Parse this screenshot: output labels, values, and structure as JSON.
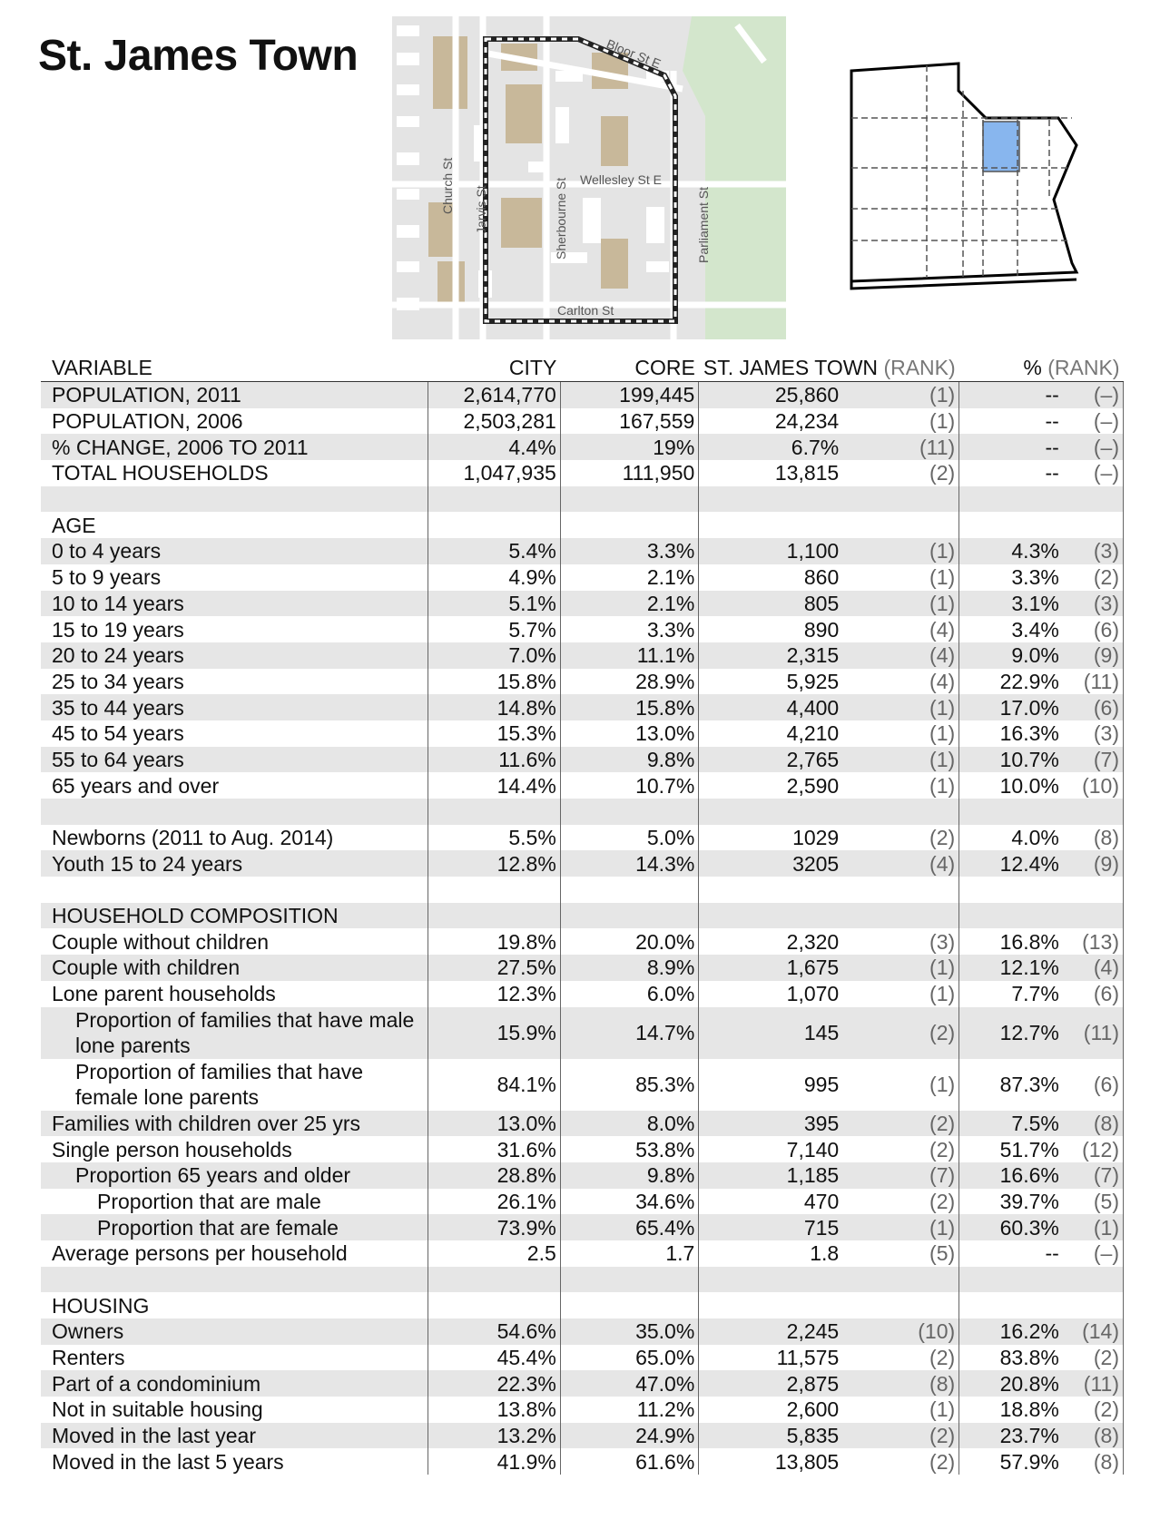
{
  "page_title": "St. James Town",
  "map": {
    "streets": {
      "bloor": "Bloor St E",
      "wellesley": "Wellesley St E",
      "carlton": "Carlton St",
      "church": "Church St",
      "jarvis": "Jarvis St",
      "sherbourne": "Sherbourne St",
      "parliament": "Parliament St"
    }
  },
  "table": {
    "headers": {
      "variable": "VARIABLE",
      "city": "CITY",
      "core": "CORE",
      "area": "ST. JAMES TOWN",
      "area_rank": "(RANK)",
      "pct": "%",
      "pct_rank": "(RANK)"
    },
    "rows": [
      {
        "label": "POPULATION, 2011",
        "city": "2,614,770",
        "core": "199,445",
        "value": "25,860",
        "rank": "(1)",
        "pct": "--",
        "pct_rank": "(–)",
        "indent": 0
      },
      {
        "label": "POPULATION, 2006",
        "city": "2,503,281",
        "core": "167,559",
        "value": "24,234",
        "rank": "(1)",
        "pct": "--",
        "pct_rank": "(–)",
        "indent": 0
      },
      {
        "label": "% CHANGE, 2006 TO 2011",
        "city": "4.4%",
        "core": "19%",
        "value": "6.7%",
        "rank": "(11)",
        "pct": "--",
        "pct_rank": "(–)",
        "indent": 0
      },
      {
        "label": "TOTAL HOUSEHOLDS",
        "city": "1,047,935",
        "core": "111,950",
        "value": "13,815",
        "rank": "(2)",
        "pct": "--",
        "pct_rank": "(–)",
        "indent": 0
      },
      {
        "label": "",
        "city": "",
        "core": "",
        "value": "",
        "rank": "",
        "pct": "",
        "pct_rank": "",
        "indent": 0
      },
      {
        "label": "AGE",
        "city": "",
        "core": "",
        "value": "",
        "rank": "",
        "pct": "",
        "pct_rank": "",
        "indent": 0
      },
      {
        "label": "0 to 4 years",
        "city": "5.4%",
        "core": "3.3%",
        "value": "1,100",
        "rank": "(1)",
        "pct": "4.3%",
        "pct_rank": "(3)",
        "indent": 0
      },
      {
        "label": "5 to 9 years",
        "city": "4.9%",
        "core": "2.1%",
        "value": "860",
        "rank": "(1)",
        "pct": "3.3%",
        "pct_rank": "(2)",
        "indent": 0
      },
      {
        "label": "10 to 14 years",
        "city": "5.1%",
        "core": "2.1%",
        "value": "805",
        "rank": "(1)",
        "pct": "3.1%",
        "pct_rank": "(3)",
        "indent": 0
      },
      {
        "label": "15 to 19 years",
        "city": "5.7%",
        "core": "3.3%",
        "value": "890",
        "rank": "(4)",
        "pct": "3.4%",
        "pct_rank": "(6)",
        "indent": 0
      },
      {
        "label": "20 to 24 years",
        "city": "7.0%",
        "core": "11.1%",
        "value": "2,315",
        "rank": "(4)",
        "pct": "9.0%",
        "pct_rank": "(9)",
        "indent": 0
      },
      {
        "label": "25 to 34 years",
        "city": "15.8%",
        "core": "28.9%",
        "value": "5,925",
        "rank": "(4)",
        "pct": "22.9%",
        "pct_rank": "(11)",
        "indent": 0
      },
      {
        "label": "35 to 44 years",
        "city": "14.8%",
        "core": "15.8%",
        "value": "4,400",
        "rank": "(1)",
        "pct": "17.0%",
        "pct_rank": "(6)",
        "indent": 0
      },
      {
        "label": "45 to 54 years",
        "city": "15.3%",
        "core": "13.0%",
        "value": "4,210",
        "rank": "(1)",
        "pct": "16.3%",
        "pct_rank": "(3)",
        "indent": 0
      },
      {
        "label": "55 to 64 years",
        "city": "11.6%",
        "core": "9.8%",
        "value": "2,765",
        "rank": "(1)",
        "pct": "10.7%",
        "pct_rank": "(7)",
        "indent": 0
      },
      {
        "label": "65 years and over",
        "city": "14.4%",
        "core": "10.7%",
        "value": "2,590",
        "rank": "(1)",
        "pct": "10.0%",
        "pct_rank": "(10)",
        "indent": 0
      },
      {
        "label": "",
        "city": "",
        "core": "",
        "value": "",
        "rank": "",
        "pct": "",
        "pct_rank": "",
        "indent": 0
      },
      {
        "label": "Newborns (2011 to Aug. 2014)",
        "city": "5.5%",
        "core": "5.0%",
        "value": "1029",
        "rank": "(2)",
        "pct": "4.0%",
        "pct_rank": "(8)",
        "indent": 0
      },
      {
        "label": "Youth 15 to 24 years",
        "city": "12.8%",
        "core": "14.3%",
        "value": "3205",
        "rank": "(4)",
        "pct": "12.4%",
        "pct_rank": "(9)",
        "indent": 0
      },
      {
        "label": "",
        "city": "",
        "core": "",
        "value": "",
        "rank": "",
        "pct": "",
        "pct_rank": "",
        "indent": 0
      },
      {
        "label": "HOUSEHOLD COMPOSITION",
        "city": "",
        "core": "",
        "value": "",
        "rank": "",
        "pct": "",
        "pct_rank": "",
        "indent": 0
      },
      {
        "label": "Couple without children",
        "city": "19.8%",
        "core": "20.0%",
        "value": "2,320",
        "rank": "(3)",
        "pct": "16.8%",
        "pct_rank": "(13)",
        "indent": 0
      },
      {
        "label": "Couple with children",
        "city": "27.5%",
        "core": "8.9%",
        "value": "1,675",
        "rank": "(1)",
        "pct": "12.1%",
        "pct_rank": "(4)",
        "indent": 0
      },
      {
        "label": "Lone parent households",
        "city": "12.3%",
        "core": "6.0%",
        "value": "1,070",
        "rank": "(1)",
        "pct": "7.7%",
        "pct_rank": "(6)",
        "indent": 0
      },
      {
        "label": "Proportion of families that have male lone parents",
        "city": "15.9%",
        "core": "14.7%",
        "value": "145",
        "rank": "(2)",
        "pct": "12.7%",
        "pct_rank": "(11)",
        "indent": 1,
        "tall": true
      },
      {
        "label": "Proportion of families that have female lone parents",
        "city": "84.1%",
        "core": "85.3%",
        "value": "995",
        "rank": "(1)",
        "pct": "87.3%",
        "pct_rank": "(6)",
        "indent": 1,
        "tall": true
      },
      {
        "label": "Families with children over 25 yrs",
        "city": "13.0%",
        "core": "8.0%",
        "value": "395",
        "rank": "(2)",
        "pct": "7.5%",
        "pct_rank": "(8)",
        "indent": 0
      },
      {
        "label": "Single person households",
        "city": "31.6%",
        "core": "53.8%",
        "value": "7,140",
        "rank": "(2)",
        "pct": "51.7%",
        "pct_rank": "(12)",
        "indent": 0
      },
      {
        "label": "Proportion 65 years and older",
        "city": "28.8%",
        "core": "9.8%",
        "value": "1,185",
        "rank": "(7)",
        "pct": "16.6%",
        "pct_rank": "(7)",
        "indent": 1
      },
      {
        "label": "Proportion that are male",
        "city": "26.1%",
        "core": "34.6%",
        "value": "470",
        "rank": "(2)",
        "pct": "39.7%",
        "pct_rank": "(5)",
        "indent": 2
      },
      {
        "label": "Proportion that are female",
        "city": "73.9%",
        "core": "65.4%",
        "value": "715",
        "rank": "(1)",
        "pct": "60.3%",
        "pct_rank": "(1)",
        "indent": 2
      },
      {
        "label": "Average persons per household",
        "city": "2.5",
        "core": "1.7",
        "value": "1.8",
        "rank": "(5)",
        "pct": "--",
        "pct_rank": "(–)",
        "indent": 0
      },
      {
        "label": "",
        "city": "",
        "core": "",
        "value": "",
        "rank": "",
        "pct": "",
        "pct_rank": "",
        "indent": 0
      },
      {
        "label": "HOUSING",
        "city": "",
        "core": "",
        "value": "",
        "rank": "",
        "pct": "",
        "pct_rank": "",
        "indent": 0
      },
      {
        "label": "Owners",
        "city": "54.6%",
        "core": "35.0%",
        "value": "2,245",
        "rank": "(10)",
        "pct": "16.2%",
        "pct_rank": "(14)",
        "indent": 0
      },
      {
        "label": "Renters",
        "city": "45.4%",
        "core": "65.0%",
        "value": "11,575",
        "rank": "(2)",
        "pct": "83.8%",
        "pct_rank": "(2)",
        "indent": 0
      },
      {
        "label": "Part of a condominium",
        "city": "22.3%",
        "core": "47.0%",
        "value": "2,875",
        "rank": "(8)",
        "pct": "20.8%",
        "pct_rank": "(11)",
        "indent": 0
      },
      {
        "label": "Not in suitable housing",
        "city": "13.8%",
        "core": "11.2%",
        "value": "2,600",
        "rank": "(1)",
        "pct": "18.8%",
        "pct_rank": "(2)",
        "indent": 0
      },
      {
        "label": "Moved in the last year",
        "city": "13.2%",
        "core": "24.9%",
        "value": "5,835",
        "rank": "(2)",
        "pct": "23.7%",
        "pct_rank": "(8)",
        "indent": 0
      },
      {
        "label": "Moved in the last 5 years",
        "city": "41.9%",
        "core": "61.6%",
        "value": "13,805",
        "rank": "(2)",
        "pct": "57.9%",
        "pct_rank": "(8)",
        "indent": 0
      }
    ]
  }
}
